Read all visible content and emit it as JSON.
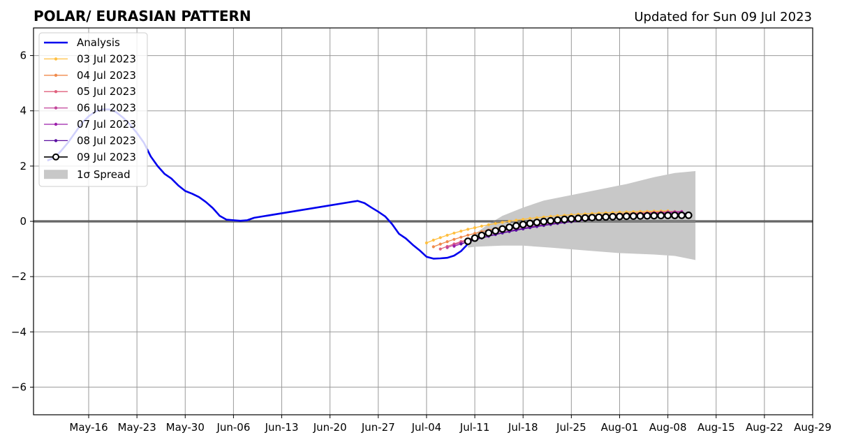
{
  "chart_data": {
    "type": "line",
    "title": "POLAR/ EURASIAN  PATTERN",
    "subtitle": "Updated for Sun 09 Jul 2023",
    "xlabel": "",
    "ylabel": "",
    "xlim": [
      "2023-05-08",
      "2023-08-29"
    ],
    "ylim": [
      -7,
      7
    ],
    "yticks": [
      6,
      4,
      2,
      0,
      -2,
      -4,
      -6
    ],
    "ytick_labels": [
      "6",
      "4",
      "2",
      "0",
      "−2",
      "−4",
      "−6"
    ],
    "xticks": [
      "2023-05-16",
      "2023-05-23",
      "2023-05-30",
      "2023-06-06",
      "2023-06-13",
      "2023-06-20",
      "2023-06-27",
      "2023-07-04",
      "2023-07-11",
      "2023-07-18",
      "2023-07-25",
      "2023-08-01",
      "2023-08-08",
      "2023-08-15",
      "2023-08-22",
      "2023-08-29"
    ],
    "xtick_labels": [
      "May-16",
      "May-23",
      "May-30",
      "Jun-06",
      "Jun-13",
      "Jun-20",
      "Jun-27",
      "Jul-04",
      "Jul-11",
      "Jul-18",
      "Jul-25",
      "Aug-01",
      "Aug-08",
      "Aug-15",
      "Aug-22",
      "Aug-29"
    ],
    "grid": true,
    "legend_position": "top-left",
    "analysis": {
      "name": "Analysis",
      "color": "#0000ee",
      "points": [
        [
          "2023-05-10",
          2.2
        ],
        [
          "2023-05-11",
          2.3
        ],
        [
          "2023-05-12",
          2.55
        ],
        [
          "2023-05-13",
          2.85
        ],
        [
          "2023-05-14",
          3.2
        ],
        [
          "2023-05-15",
          3.55
        ],
        [
          "2023-05-16",
          3.8
        ],
        [
          "2023-05-17",
          3.98
        ],
        [
          "2023-05-18",
          4.05
        ],
        [
          "2023-05-19",
          4.05
        ],
        [
          "2023-05-20",
          3.95
        ],
        [
          "2023-05-21",
          3.75
        ],
        [
          "2023-05-22",
          3.5
        ],
        [
          "2023-05-23",
          3.2
        ],
        [
          "2023-05-24",
          2.85
        ],
        [
          "2023-05-25",
          2.35
        ],
        [
          "2023-05-26",
          2.0
        ],
        [
          "2023-05-27",
          1.72
        ],
        [
          "2023-05-28",
          1.55
        ],
        [
          "2023-05-29",
          1.3
        ],
        [
          "2023-05-30",
          1.1
        ],
        [
          "2023-05-31",
          1.0
        ],
        [
          "2023-06-01",
          0.88
        ],
        [
          "2023-06-02",
          0.7
        ],
        [
          "2023-06-03",
          0.48
        ],
        [
          "2023-06-04",
          0.2
        ],
        [
          "2023-06-05",
          0.06
        ],
        [
          "2023-06-06",
          0.04
        ],
        [
          "2023-06-07",
          0.02
        ],
        [
          "2023-06-08",
          0.04
        ],
        [
          "2023-06-09",
          0.13
        ],
        [
          "2023-06-24",
          0.74
        ],
        [
          "2023-06-25",
          0.66
        ],
        [
          "2023-06-26",
          0.5
        ],
        [
          "2023-06-27",
          0.35
        ],
        [
          "2023-06-28",
          0.18
        ],
        [
          "2023-06-29",
          -0.1
        ],
        [
          "2023-06-30",
          -0.45
        ],
        [
          "2023-07-01",
          -0.62
        ],
        [
          "2023-07-02",
          -0.85
        ],
        [
          "2023-07-03",
          -1.05
        ],
        [
          "2023-07-04",
          -1.28
        ],
        [
          "2023-07-05",
          -1.35
        ],
        [
          "2023-07-06",
          -1.34
        ],
        [
          "2023-07-07",
          -1.32
        ],
        [
          "2023-07-08",
          -1.24
        ],
        [
          "2023-07-09",
          -1.08
        ],
        [
          "2023-07-10",
          -0.82
        ]
      ]
    },
    "forecasts": [
      {
        "name": "03 Jul 2023",
        "color": "#ffbf40",
        "start": "2023-07-04",
        "end": "2023-08-08",
        "y0": -0.78,
        "y1": 0.38,
        "k": 3,
        "r": 1.7
      },
      {
        "name": "04 Jul 2023",
        "color": "#f08a4b",
        "start": "2023-07-05",
        "end": "2023-08-09",
        "y0": -0.92,
        "y1": 0.36,
        "k": 2.5,
        "r": 1.7
      },
      {
        "name": "05 Jul 2023",
        "color": "#e0607e",
        "start": "2023-07-06",
        "end": "2023-08-10",
        "y0": -1.0,
        "y1": 0.35,
        "k": 2.3,
        "r": 1.7
      },
      {
        "name": "06 Jul 2023",
        "color": "#c2459a",
        "start": "2023-07-07",
        "end": "2023-08-10",
        "y0": -0.95,
        "y1": 0.36,
        "k": 2.3,
        "r": 1.7
      },
      {
        "name": "07 Jul 2023",
        "color": "#9c1fab",
        "start": "2023-07-08",
        "end": "2023-08-10",
        "y0": -0.9,
        "y1": 0.33,
        "k": 2.0,
        "r": 1.7
      },
      {
        "name": "08 Jul 2023",
        "color": "#5a0fa0",
        "start": "2023-07-09",
        "end": "2023-08-11",
        "y0": -0.82,
        "y1": 0.3,
        "k": 2.0,
        "r": 1.7
      },
      {
        "name": "09 Jul 2023",
        "color": "#000000",
        "start": "2023-07-10",
        "end": "2023-08-11",
        "y0": -0.72,
        "y1": 0.22,
        "k": 4.0,
        "r": 4.3
      }
    ],
    "spread": {
      "name": "1σ Spread",
      "color": "#c8c8c8",
      "upper": [
        [
          "2023-07-10",
          -0.7
        ],
        [
          "2023-07-11",
          -0.45
        ],
        [
          "2023-07-13",
          -0.1
        ],
        [
          "2023-07-15",
          0.2
        ],
        [
          "2023-07-18",
          0.5
        ],
        [
          "2023-07-21",
          0.75
        ],
        [
          "2023-07-25",
          0.95
        ],
        [
          "2023-07-29",
          1.15
        ],
        [
          "2023-08-02",
          1.35
        ],
        [
          "2023-08-06",
          1.6
        ],
        [
          "2023-08-09",
          1.75
        ],
        [
          "2023-08-12",
          1.82
        ]
      ],
      "lower": [
        [
          "2023-07-10",
          -0.95
        ],
        [
          "2023-07-11",
          -0.92
        ],
        [
          "2023-07-15",
          -0.88
        ],
        [
          "2023-07-18",
          -0.88
        ],
        [
          "2023-07-22",
          -0.95
        ],
        [
          "2023-07-27",
          -1.05
        ],
        [
          "2023-08-01",
          -1.15
        ],
        [
          "2023-08-06",
          -1.2
        ],
        [
          "2023-08-09",
          -1.25
        ],
        [
          "2023-08-12",
          -1.4
        ]
      ]
    }
  }
}
